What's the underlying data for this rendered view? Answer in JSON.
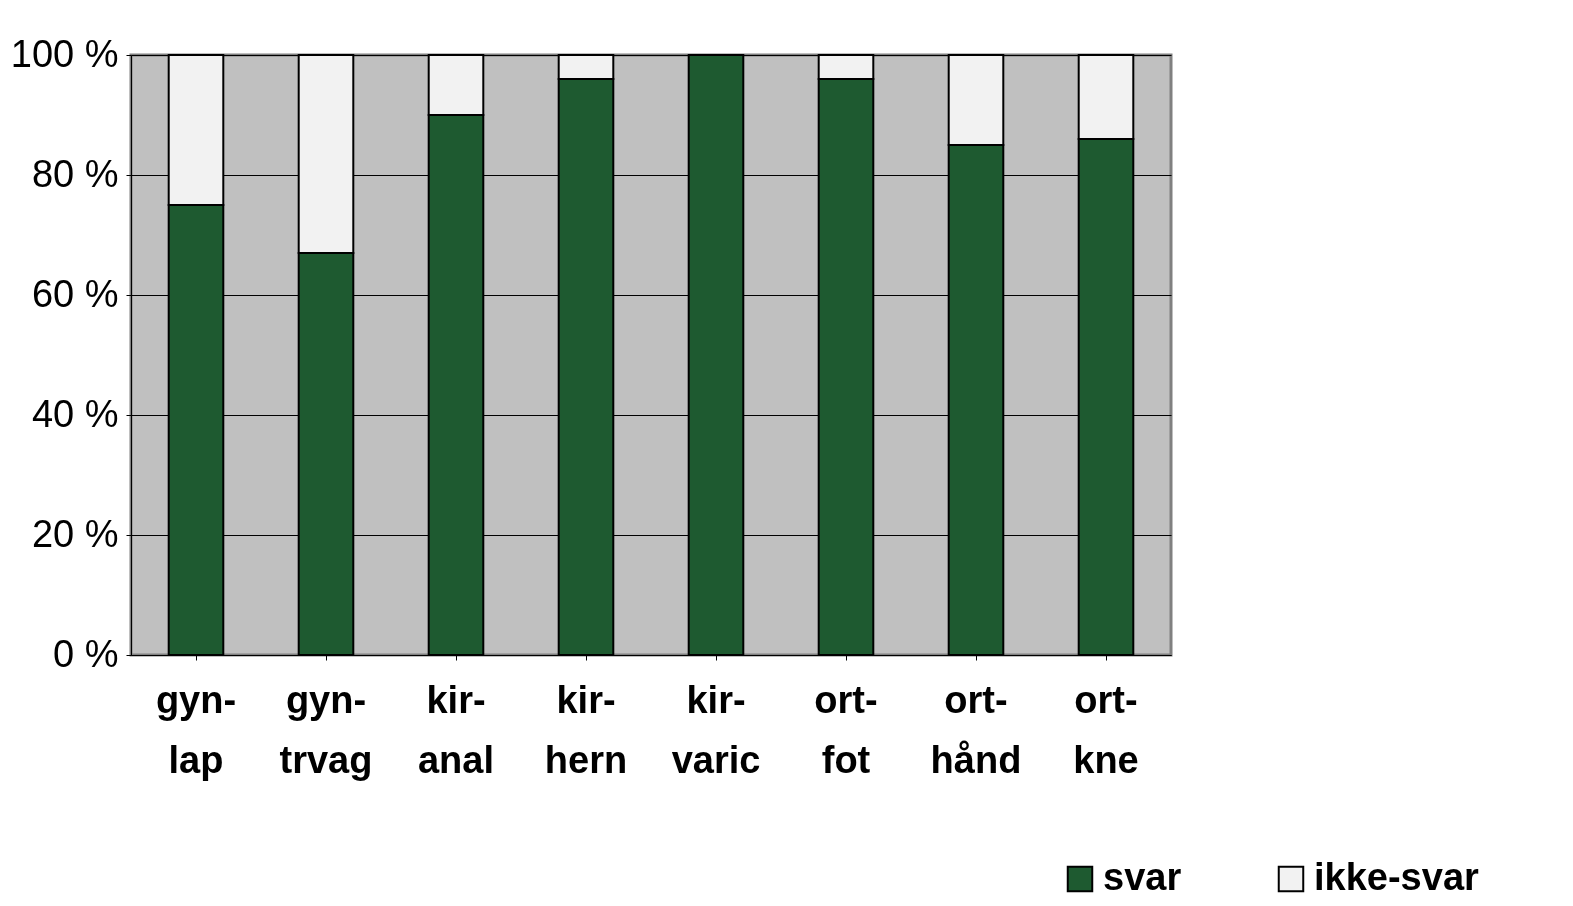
{
  "chart_data": {
    "type": "bar",
    "stacked": true,
    "categories": [
      "gyn-lap",
      "gyn-trvag",
      "kir-anal",
      "kir-hern",
      "kir-varic",
      "ort-fot",
      "ort-hånd",
      "ort-kne"
    ],
    "series": [
      {
        "name": "svar",
        "color": "#1e5a30",
        "values": [
          75,
          67,
          90,
          96,
          100,
          96,
          85,
          86
        ]
      },
      {
        "name": "ikke-svar",
        "color": "#f2f2f2",
        "values": [
          25,
          33,
          10,
          4,
          0,
          4,
          15,
          14
        ]
      }
    ],
    "ylim": [
      0,
      100
    ],
    "yticks": [
      {
        "value": 0,
        "label": "0 %"
      },
      {
        "value": 20,
        "label": "20 %"
      },
      {
        "value": 40,
        "label": "40 %"
      },
      {
        "value": 60,
        "label": "60 %"
      },
      {
        "value": 80,
        "label": "80 %"
      },
      {
        "value": 100,
        "label": "100 %"
      }
    ],
    "grid": "y",
    "legend": "bottom right"
  }
}
